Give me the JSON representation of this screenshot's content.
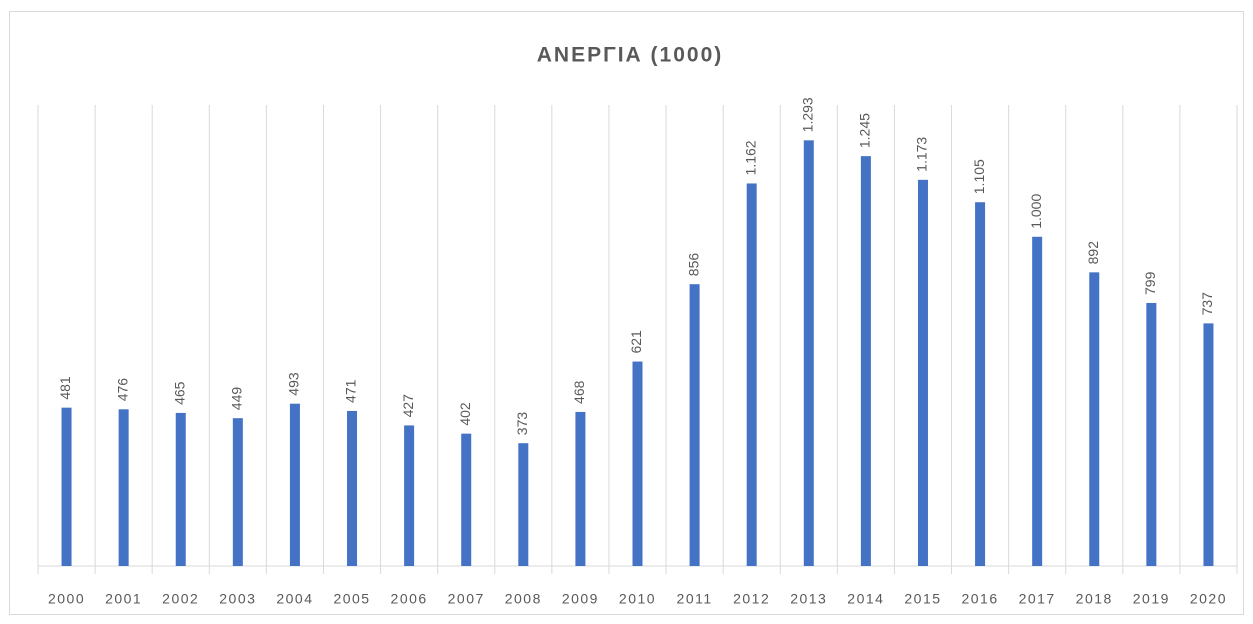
{
  "chart_data": {
    "type": "bar",
    "title": "ΑΝΕΡΓΙΑ (1000)",
    "categories": [
      "2000",
      "2001",
      "2002",
      "2003",
      "2004",
      "2005",
      "2006",
      "2007",
      "2008",
      "2009",
      "2010",
      "2011",
      "2012",
      "2013",
      "2014",
      "2015",
      "2016",
      "2017",
      "2018",
      "2019",
      "2020"
    ],
    "values": [
      481,
      476,
      465,
      449,
      493,
      471,
      427,
      402,
      373,
      468,
      621,
      856,
      1162,
      1293,
      1245,
      1173,
      1105,
      1000,
      892,
      799,
      737
    ],
    "value_labels": [
      "481",
      "476",
      "465",
      "449",
      "493",
      "471",
      "427",
      "402",
      "373",
      "468",
      "621",
      "856",
      "1.162",
      "1.293",
      "1.245",
      "1.173",
      "1.105",
      "1.000",
      "892",
      "799",
      "737"
    ],
    "color": "#4472c4",
    "grid": true
  }
}
